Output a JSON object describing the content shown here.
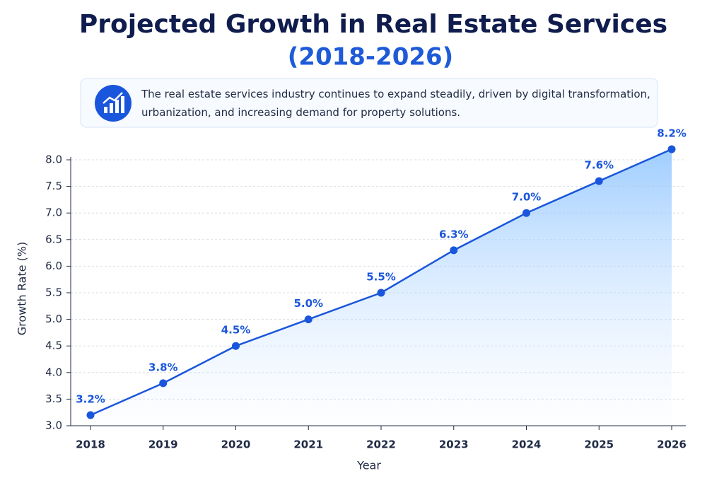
{
  "chart_data": {
    "type": "line",
    "title": "Projected Growth in Real Estate Services",
    "subtitle": "(2018-2026)",
    "description": "The real estate services industry continues to expand steadily, driven by digital transformation, urbanization, and increasing demand for property solutions.",
    "x_label": "Year",
    "y_label": "Growth Rate (%)",
    "categories": [
      "2018",
      "2019",
      "2020",
      "2021",
      "2022",
      "2023",
      "2024",
      "2025",
      "2026"
    ],
    "values": [
      3.2,
      3.8,
      4.5,
      5.0,
      5.5,
      6.3,
      7.0,
      7.6,
      8.2
    ],
    "value_labels": [
      "3.2%",
      "3.8%",
      "4.5%",
      "5.0%",
      "5.5%",
      "6.3%",
      "7.0%",
      "7.6%",
      "8.2%"
    ],
    "color": "#1a56db",
    "ylim": [
      3,
      8
    ],
    "yticks": [
      {
        "value": 3,
        "label": "3.0"
      },
      {
        "value": 3.5,
        "label": "3.5"
      },
      {
        "value": 4,
        "label": "4.0"
      },
      {
        "value": 4.5,
        "label": "4.5"
      },
      {
        "value": 5,
        "label": "5.0"
      },
      {
        "value": 5.5,
        "label": "5.5"
      },
      {
        "value": 6,
        "label": "6.0"
      },
      {
        "value": 6.5,
        "label": "6.5"
      },
      {
        "value": 7,
        "label": "7.0"
      },
      {
        "value": 7.5,
        "label": "7.5"
      },
      {
        "value": 8,
        "label": "8.0"
      }
    ],
    "grid": true,
    "area_fill": true
  }
}
